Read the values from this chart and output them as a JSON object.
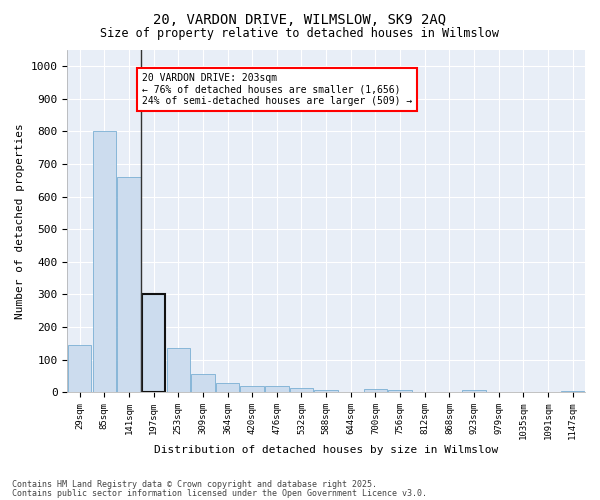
{
  "title_line1": "20, VARDON DRIVE, WILMSLOW, SK9 2AQ",
  "title_line2": "Size of property relative to detached houses in Wilmslow",
  "xlabel": "Distribution of detached houses by size in Wilmslow",
  "ylabel": "Number of detached properties",
  "bar_labels": [
    "29sqm",
    "85sqm",
    "141sqm",
    "197sqm",
    "253sqm",
    "309sqm",
    "364sqm",
    "420sqm",
    "476sqm",
    "532sqm",
    "588sqm",
    "644sqm",
    "700sqm",
    "756sqm",
    "812sqm",
    "868sqm",
    "923sqm",
    "979sqm",
    "1035sqm",
    "1091sqm",
    "1147sqm"
  ],
  "bar_values": [
    145,
    800,
    660,
    300,
    135,
    55,
    28,
    18,
    18,
    14,
    5,
    0,
    8,
    5,
    0,
    0,
    5,
    0,
    0,
    0,
    3
  ],
  "bar_fill_color": "#ccdcee",
  "bar_edge_color": "#7aafd4",
  "highlight_edge_color": "#111111",
  "vline_color": "#333333",
  "annotation_box_text": "20 VARDON DRIVE: 203sqm\n← 76% of detached houses are smaller (1,656)\n24% of semi-detached houses are larger (509) →",
  "highlight_idx": 3,
  "ylim": [
    0,
    1050
  ],
  "yticks": [
    0,
    100,
    200,
    300,
    400,
    500,
    600,
    700,
    800,
    900,
    1000
  ],
  "background_color": "#ffffff",
  "plot_bg_color": "#e8eef7",
  "grid_color": "#ffffff",
  "footer_line1": "Contains HM Land Registry data © Crown copyright and database right 2025.",
  "footer_line2": "Contains public sector information licensed under the Open Government Licence v3.0.",
  "fig_width": 6.0,
  "fig_height": 5.0,
  "dpi": 100
}
